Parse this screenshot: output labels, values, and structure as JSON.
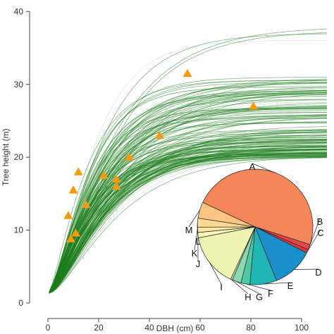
{
  "chart_data": [
    {
      "type": "line",
      "title": "",
      "xlabel": "DBH (cm)",
      "ylabel": "Tree height (m)",
      "xlim": [
        -5,
        110
      ],
      "ylim": [
        0,
        41
      ],
      "x_ticks": [
        0,
        20,
        40,
        60,
        80,
        100
      ],
      "y_ticks": [
        0,
        10,
        20,
        30,
        40
      ],
      "grid": false,
      "series": [
        {
          "kind": "curve-ensemble",
          "color": "#1e7d1e",
          "form": "asymptotic",
          "asymptote_min": 20,
          "asymptote_max": 38
        },
        {
          "kind": "points",
          "marker": "triangle",
          "color": "#f39c12",
          "x": [
            8,
            9,
            10,
            11,
            12,
            15,
            22,
            27,
            27,
            32,
            44,
            55,
            81
          ],
          "y": [
            12,
            8.8,
            15.5,
            9.6,
            18,
            13.5,
            17.5,
            17,
            16,
            20,
            23,
            31.5,
            27
          ]
        }
      ]
    },
    {
      "type": "pie",
      "title": "",
      "slices": [
        {
          "label": "A",
          "value": 48.0,
          "color": "#f4875a"
        },
        {
          "label": "B",
          "value": 1.5,
          "color": "#e8474a"
        },
        {
          "label": "C",
          "value": 1.0,
          "color": "#d93a3d"
        },
        {
          "label": "D",
          "value": 11.5,
          "color": "#1a8fc9"
        },
        {
          "label": "E",
          "value": 7.5,
          "color": "#21b5b5"
        },
        {
          "label": "F",
          "value": 2.5,
          "color": "#4fc9a5"
        },
        {
          "label": "G",
          "value": 2.5,
          "color": "#8ed8b0"
        },
        {
          "label": "H",
          "value": 0.5,
          "color": "#c8e9b4"
        },
        {
          "label": "I",
          "value": 15.0,
          "color": "#eef3b0"
        },
        {
          "label": "J",
          "value": 1.5,
          "color": "#fbf5b7"
        },
        {
          "label": "K",
          "value": 1.5,
          "color": "#fde8a3"
        },
        {
          "label": "L",
          "value": 2.5,
          "color": "#fdd794"
        },
        {
          "label": "M",
          "value": 4.5,
          "color": "#fcc583"
        }
      ]
    }
  ]
}
